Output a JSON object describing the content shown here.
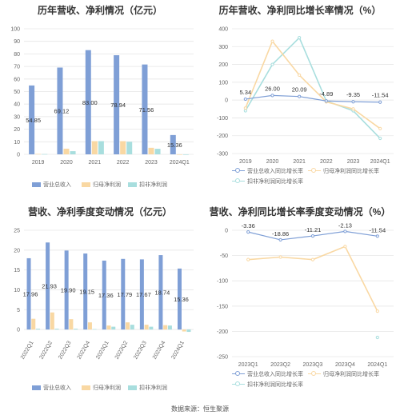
{
  "footer": "数据来源：恒生聚源",
  "colors": {
    "revenue": "#7f9fd6",
    "parent_profit": "#f9d8a3",
    "deducted_profit": "#a8dede",
    "grid": "#e6e6e6",
    "axis_text": "#666666",
    "label_text": "#333333"
  },
  "chart_data": [
    {
      "id": "annual",
      "type": "bar",
      "title": "历年营收、净利情况（亿元）",
      "categories": [
        "2019",
        "2020",
        "2021",
        "2022",
        "2023",
        "2024Q1"
      ],
      "series": [
        {
          "name": "营业总收入",
          "values": [
            54.85,
            69.12,
            83.0,
            78.94,
            71.56,
            15.36
          ],
          "labels": [
            "54.85",
            "69.12",
            "83.00",
            "78.94",
            "71.56",
            "15.36"
          ]
        },
        {
          "name": "归母净利润",
          "values": [
            0.3,
            4.5,
            10.5,
            10.5,
            5.2,
            -0.3
          ]
        },
        {
          "name": "扣非净利润",
          "values": [
            0.2,
            2.5,
            10.5,
            10.0,
            4.4,
            -0.4
          ]
        }
      ],
      "ylim": [
        0,
        100
      ],
      "yticks": [
        0,
        10,
        20,
        30,
        40,
        50,
        60,
        70,
        80,
        90,
        100
      ],
      "grid": true,
      "legend": "bottom"
    },
    {
      "id": "annual_growth",
      "type": "line",
      "title": "历年营收、净利同比增长率情况（%）",
      "categories": [
        "2019",
        "2020",
        "2021",
        "2022",
        "2023",
        "2024Q1"
      ],
      "series": [
        {
          "name": "营业总收入同比增长率",
          "values": [
            5.34,
            26.0,
            20.09,
            -4.89,
            -9.35,
            -11.54
          ],
          "labels": [
            "5.34",
            "26.00",
            "20.09",
            "-4.89",
            "-9.35",
            "-11.54"
          ]
        },
        {
          "name": "归母净利润同比增长率",
          "values": [
            -45,
            330,
            140,
            -10,
            -50,
            -160
          ]
        },
        {
          "name": "扣非净利润同比增长率",
          "values": [
            -60,
            200,
            350,
            -5,
            -60,
            -215
          ]
        }
      ],
      "ylim": [
        -300,
        400
      ],
      "yticks": [
        -300,
        -200,
        -100,
        0,
        100,
        200,
        300,
        400
      ],
      "grid": true,
      "legend": "bottom"
    },
    {
      "id": "quarterly",
      "type": "bar",
      "title": "营收、净利季度变动情况（亿元）",
      "categories": [
        "2022Q1",
        "2022Q2",
        "2022Q3",
        "2022Q4",
        "2023Q1",
        "2023Q2",
        "2023Q3",
        "2023Q4",
        "2024Q1"
      ],
      "series": [
        {
          "name": "营业总收入",
          "values": [
            17.96,
            21.93,
            19.9,
            19.15,
            17.36,
            17.79,
            17.67,
            18.74,
            15.36
          ],
          "labels": [
            "17.96",
            "21.93",
            "19.90",
            "19.15",
            "17.36",
            "17.79",
            "17.67",
            "18.74",
            "15.36"
          ]
        },
        {
          "name": "归母净利润",
          "values": [
            2.7,
            4.3,
            2.6,
            1.8,
            1.0,
            1.8,
            1.2,
            1.1,
            -0.5
          ]
        },
        {
          "name": "扣非净利润",
          "values": [
            0.2,
            0.2,
            0.2,
            0.1,
            0.7,
            1.2,
            0.7,
            1.0,
            -0.6
          ]
        }
      ],
      "ylim": [
        -2,
        25
      ],
      "yticks": [
        0,
        5,
        10,
        15,
        20,
        25
      ],
      "grid": true,
      "legend": "bottom"
    },
    {
      "id": "quarterly_growth",
      "type": "line",
      "title": "营收、净利同比增长率季度变动情况（%）",
      "categories": [
        "2023Q1",
        "2023Q2",
        "2023Q3",
        "2023Q4",
        "2024Q1"
      ],
      "series": [
        {
          "name": "营业总收入同比增长率",
          "values": [
            -3.36,
            -18.86,
            -11.21,
            -2.13,
            -11.54
          ],
          "labels": [
            "-3.36",
            "-18.86",
            "-11.21",
            "-2.13",
            "-11.54"
          ]
        },
        {
          "name": "归母净利润同比增长率",
          "values": [
            -58,
            -53,
            -58,
            -32,
            -160
          ]
        },
        {
          "name": "扣非净利润同比增长率",
          "values": [
            null,
            null,
            null,
            null,
            -212
          ]
        }
      ],
      "ylim": [
        -250,
        0
      ],
      "yticks": [
        -250,
        -200,
        -150,
        -100,
        -50,
        0
      ],
      "grid": true,
      "legend": "bottom"
    }
  ]
}
